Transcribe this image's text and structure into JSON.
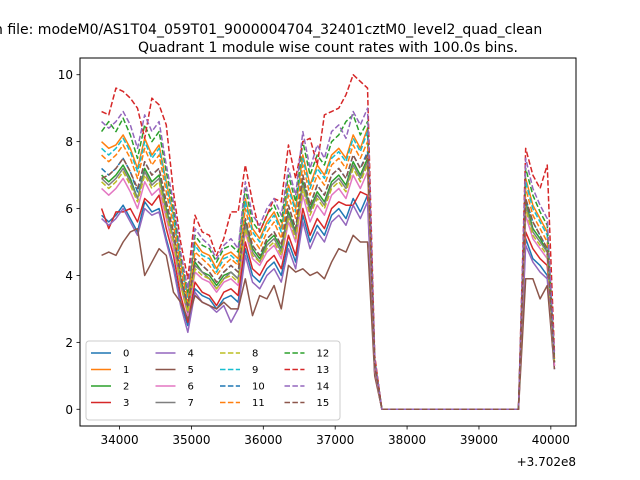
{
  "suptitle": "n file: modeM0/AS1T04_059T01_9000004704_32401cztM0_level2_quad_clean",
  "chart_data": {
    "type": "line",
    "title": "Quadrant 1 module wise count rates with 100.0s bins.",
    "xlabel": "",
    "ylabel": "",
    "x_offset_label": "+3.702e8",
    "xlim": [
      33450,
      40350
    ],
    "ylim": [
      -0.5,
      10.5
    ],
    "xticks": [
      34000,
      35000,
      36000,
      37000,
      38000,
      39000,
      40000
    ],
    "xtick_labels": [
      "34000",
      "35000",
      "36000",
      "37000",
      "38000",
      "39000",
      "40000"
    ],
    "yticks": [
      0,
      2,
      4,
      6,
      8,
      10
    ],
    "ytick_labels": [
      "0",
      "2",
      "4",
      "6",
      "8",
      "10"
    ],
    "legend": {
      "placement": "lower-left",
      "columns": 4
    },
    "x": [
      33750,
      33850,
      33950,
      34050,
      34150,
      34250,
      34350,
      34450,
      34550,
      34650,
      34750,
      34850,
      34950,
      35050,
      35150,
      35250,
      35350,
      35450,
      35550,
      35650,
      35750,
      35850,
      35950,
      36050,
      36150,
      36250,
      36350,
      36450,
      36550,
      36650,
      36750,
      36850,
      36950,
      37050,
      37150,
      37250,
      37350,
      37450,
      37550,
      37650,
      37750,
      37850,
      37950,
      38050,
      38150,
      38250,
      38350,
      38450,
      38550,
      38650,
      38750,
      38850,
      38950,
      39050,
      39150,
      39250,
      39350,
      39450,
      39550,
      39650,
      39750,
      39850,
      39950,
      40050
    ],
    "series": [
      {
        "name": "0",
        "color": "#1f77b4",
        "dashed": false,
        "values": [
          5.8,
          5.6,
          5.8,
          6.1,
          5.7,
          5.3,
          6.2,
          5.9,
          6.0,
          5.1,
          4.3,
          3.2,
          2.5,
          3.6,
          3.4,
          3.3,
          3.0,
          3.3,
          3.4,
          3.2,
          4.8,
          4.0,
          3.8,
          4.2,
          4.4,
          4.0,
          5.0,
          4.4,
          5.8,
          5.0,
          5.5,
          5.2,
          5.8,
          6.0,
          5.7,
          6.3,
          5.9,
          6.4,
          1.1,
          0,
          0,
          0,
          0,
          0,
          0,
          0,
          0,
          0,
          0,
          0,
          0,
          0,
          0,
          0,
          0,
          0,
          0,
          0,
          0,
          5.1,
          4.5,
          4.3,
          4.0,
          1.2
        ]
      },
      {
        "name": "1",
        "color": "#ff7f0e",
        "dashed": false,
        "values": [
          8.0,
          7.8,
          7.9,
          8.2,
          7.8,
          7.2,
          8.1,
          7.6,
          7.9,
          6.8,
          5.8,
          4.4,
          3.4,
          5.0,
          4.7,
          4.6,
          4.2,
          4.6,
          4.7,
          4.5,
          6.3,
          5.4,
          5.1,
          5.6,
          5.9,
          5.4,
          6.7,
          6.0,
          7.6,
          6.7,
          7.3,
          7.0,
          7.6,
          7.8,
          7.5,
          8.2,
          7.8,
          8.4,
          1.4,
          0,
          0,
          0,
          0,
          0,
          0,
          0,
          0,
          0,
          0,
          0,
          0,
          0,
          0,
          0,
          0,
          0,
          0,
          0,
          0,
          6.9,
          6.1,
          5.7,
          5.3,
          1.5
        ]
      },
      {
        "name": "2",
        "color": "#2ca02c",
        "dashed": false,
        "values": [
          7.0,
          6.8,
          7.0,
          7.3,
          6.9,
          6.3,
          7.2,
          6.8,
          7.0,
          6.0,
          5.1,
          3.9,
          3.0,
          4.4,
          4.1,
          4.0,
          3.7,
          4.0,
          4.1,
          3.9,
          5.6,
          4.8,
          4.5,
          5.0,
          5.2,
          4.8,
          5.9,
          5.3,
          6.8,
          6.0,
          6.5,
          6.2,
          6.8,
          7.0,
          6.7,
          7.4,
          7.0,
          7.5,
          1.3,
          0,
          0,
          0,
          0,
          0,
          0,
          0,
          0,
          0,
          0,
          0,
          0,
          0,
          0,
          0,
          0,
          0,
          0,
          0,
          0,
          6.2,
          5.4,
          5.1,
          4.7,
          1.4
        ]
      },
      {
        "name": "3",
        "color": "#d62728",
        "dashed": false,
        "values": [
          6.0,
          5.4,
          5.9,
          5.9,
          6.0,
          5.6,
          6.3,
          6.1,
          6.4,
          5.4,
          4.6,
          3.4,
          2.6,
          3.8,
          3.5,
          3.4,
          3.1,
          3.5,
          3.6,
          3.4,
          5.0,
          4.2,
          4.0,
          4.4,
          4.6,
          4.2,
          5.2,
          4.6,
          6.0,
          5.2,
          5.7,
          5.4,
          6.0,
          6.2,
          6.1,
          6.1,
          6.5,
          6.4,
          1.1,
          0,
          0,
          0,
          0,
          0,
          0,
          0,
          0,
          0,
          0,
          0,
          0,
          0,
          0,
          0,
          0,
          0,
          0,
          0,
          0,
          5.3,
          4.8,
          4.5,
          4.3,
          1.3
        ]
      },
      {
        "name": "4",
        "color": "#9467bd",
        "dashed": false,
        "values": [
          5.7,
          5.5,
          5.7,
          6.0,
          5.6,
          5.2,
          6.0,
          5.8,
          5.9,
          5.0,
          4.2,
          3.1,
          2.3,
          3.5,
          3.2,
          3.1,
          2.9,
          3.1,
          2.6,
          3.0,
          4.6,
          3.8,
          3.6,
          4.0,
          4.2,
          3.8,
          4.8,
          4.2,
          5.6,
          4.8,
          5.3,
          5.0,
          5.6,
          5.8,
          5.5,
          6.1,
          5.7,
          6.2,
          1.1,
          0,
          0,
          0,
          0,
          0,
          0,
          0,
          0,
          0,
          0,
          0,
          0,
          0,
          0,
          0,
          0,
          0,
          0,
          0,
          0,
          4.9,
          4.4,
          4.1,
          3.9,
          1.2
        ]
      },
      {
        "name": "5",
        "color": "#8c564b",
        "dashed": false,
        "values": [
          4.6,
          4.7,
          4.6,
          5.0,
          5.3,
          5.4,
          4.0,
          4.4,
          4.8,
          4.6,
          3.5,
          3.2,
          2.7,
          3.4,
          3.2,
          3.1,
          3.0,
          3.2,
          3.0,
          3.0,
          3.9,
          2.8,
          3.4,
          3.3,
          3.7,
          3.0,
          4.3,
          4.1,
          4.2,
          4.0,
          4.1,
          3.9,
          4.4,
          4.8,
          4.7,
          5.2,
          5.0,
          5.0,
          1.0,
          0,
          0,
          0,
          0,
          0,
          0,
          0,
          0,
          0,
          0,
          0,
          0,
          0,
          0,
          0,
          0,
          0,
          0,
          0,
          0,
          3.9,
          3.9,
          3.3,
          3.7,
          1.2
        ]
      },
      {
        "name": "6",
        "color": "#e377c2",
        "dashed": false,
        "values": [
          6.6,
          6.4,
          6.6,
          6.9,
          6.5,
          6.0,
          6.8,
          6.4,
          6.6,
          5.7,
          4.8,
          3.7,
          2.8,
          4.1,
          3.9,
          3.8,
          3.5,
          3.8,
          3.9,
          3.7,
          5.3,
          4.5,
          4.3,
          4.7,
          4.9,
          4.5,
          5.6,
          5.0,
          6.4,
          5.6,
          6.1,
          5.8,
          6.4,
          6.6,
          6.3,
          7.0,
          6.6,
          7.1,
          1.2,
          0,
          0,
          0,
          0,
          0,
          0,
          0,
          0,
          0,
          0,
          0,
          0,
          0,
          0,
          0,
          0,
          0,
          0,
          0,
          0,
          5.8,
          5.1,
          4.8,
          4.5,
          1.3
        ]
      },
      {
        "name": "7",
        "color": "#7f7f7f",
        "dashed": false,
        "values": [
          6.9,
          6.7,
          6.9,
          7.2,
          6.8,
          6.3,
          7.1,
          6.7,
          6.9,
          5.9,
          5.1,
          3.8,
          2.9,
          4.3,
          4.1,
          3.9,
          3.6,
          3.9,
          4.1,
          3.9,
          5.5,
          4.7,
          4.4,
          4.9,
          5.1,
          4.7,
          5.8,
          5.2,
          6.7,
          5.9,
          6.4,
          6.1,
          6.7,
          6.9,
          6.6,
          7.3,
          6.9,
          7.4,
          1.3,
          0,
          0,
          0,
          0,
          0,
          0,
          0,
          0,
          0,
          0,
          0,
          0,
          0,
          0,
          0,
          0,
          0,
          0,
          0,
          0,
          6.1,
          5.3,
          5.0,
          4.7,
          1.4
        ]
      },
      {
        "name": "8",
        "color": "#bcbd22",
        "dashed": true,
        "values": [
          6.8,
          6.6,
          6.8,
          7.1,
          6.7,
          6.2,
          7.0,
          6.6,
          6.8,
          5.8,
          5.0,
          3.7,
          2.9,
          4.2,
          4.0,
          3.9,
          3.6,
          3.9,
          4.0,
          3.8,
          5.4,
          4.6,
          4.4,
          4.8,
          5.0,
          4.6,
          5.7,
          5.1,
          6.6,
          5.8,
          6.3,
          6.0,
          6.6,
          6.8,
          6.5,
          7.2,
          6.8,
          7.3,
          1.3,
          0,
          0,
          0,
          0,
          0,
          0,
          0,
          0,
          0,
          0,
          0,
          0,
          0,
          0,
          0,
          0,
          0,
          0,
          0,
          0,
          6.0,
          5.2,
          4.9,
          4.6,
          1.4
        ]
      },
      {
        "name": "9",
        "color": "#17becf",
        "dashed": true,
        "values": [
          7.8,
          7.6,
          7.8,
          8.1,
          7.7,
          7.1,
          8.0,
          7.5,
          7.8,
          6.7,
          5.7,
          4.3,
          3.3,
          4.9,
          4.6,
          4.5,
          4.1,
          4.5,
          4.6,
          4.4,
          6.2,
          5.3,
          5.0,
          5.5,
          5.8,
          5.3,
          6.6,
          5.9,
          7.5,
          6.6,
          7.2,
          6.9,
          7.5,
          7.7,
          7.4,
          8.1,
          7.7,
          8.3,
          1.4,
          0,
          0,
          0,
          0,
          0,
          0,
          0,
          0,
          0,
          0,
          0,
          0,
          0,
          0,
          0,
          0,
          0,
          0,
          0,
          0,
          6.8,
          6.0,
          5.6,
          5.2,
          1.5
        ]
      },
      {
        "name": "10",
        "color": "#1f77b4",
        "dashed": true,
        "values": [
          7.2,
          7.0,
          7.2,
          7.5,
          7.1,
          6.5,
          7.4,
          7.0,
          7.2,
          6.2,
          5.3,
          4.0,
          3.1,
          4.5,
          4.3,
          4.1,
          3.8,
          4.1,
          4.3,
          4.1,
          5.7,
          4.9,
          4.6,
          5.1,
          5.3,
          4.9,
          6.1,
          5.4,
          7.0,
          6.1,
          6.7,
          6.4,
          7.0,
          7.2,
          6.9,
          7.6,
          7.2,
          7.7,
          1.3,
          0,
          0,
          0,
          0,
          0,
          0,
          0,
          0,
          0,
          0,
          0,
          0,
          0,
          0,
          0,
          0,
          0,
          0,
          0,
          0,
          6.3,
          5.6,
          5.2,
          4.8,
          1.4
        ]
      },
      {
        "name": "11",
        "color": "#ff7f0e",
        "dashed": true,
        "values": [
          7.6,
          7.4,
          7.6,
          7.9,
          7.5,
          6.9,
          7.8,
          7.3,
          7.6,
          6.5,
          5.5,
          4.2,
          3.2,
          4.7,
          4.5,
          4.3,
          4.0,
          4.3,
          4.5,
          4.3,
          6.0,
          5.1,
          4.8,
          5.3,
          5.6,
          5.1,
          6.4,
          5.7,
          7.3,
          6.4,
          7.0,
          6.7,
          7.3,
          7.5,
          7.2,
          7.9,
          7.5,
          8.0,
          1.4,
          0,
          0,
          0,
          0,
          0,
          0,
          0,
          0,
          0,
          0,
          0,
          0,
          0,
          0,
          0,
          0,
          0,
          0,
          0,
          0,
          6.6,
          5.8,
          5.4,
          5.0,
          1.5
        ]
      },
      {
        "name": "12",
        "color": "#2ca02c",
        "dashed": true,
        "values": [
          8.3,
          8.6,
          8.3,
          8.7,
          8.2,
          7.5,
          8.5,
          8.0,
          8.3,
          7.1,
          6.0,
          4.6,
          3.5,
          5.2,
          4.9,
          4.8,
          4.4,
          4.8,
          4.9,
          4.7,
          6.6,
          5.6,
          5.3,
          5.8,
          6.1,
          5.6,
          7.0,
          6.2,
          8.0,
          7.0,
          7.6,
          7.3,
          8.0,
          8.2,
          8.6,
          8.8,
          8.2,
          8.6,
          1.5,
          0,
          0,
          0,
          0,
          0,
          0,
          0,
          0,
          0,
          0,
          0,
          0,
          0,
          0,
          0,
          0,
          0,
          0,
          0,
          0,
          7.2,
          6.4,
          5.9,
          5.5,
          1.6
        ]
      },
      {
        "name": "13",
        "color": "#d62728",
        "dashed": true,
        "values": [
          8.9,
          8.8,
          9.6,
          9.5,
          9.3,
          9.0,
          8.1,
          9.3,
          9.1,
          8.5,
          6.5,
          5.0,
          3.9,
          5.8,
          5.3,
          5.2,
          4.6,
          5.1,
          5.9,
          5.9,
          7.3,
          6.2,
          5.3,
          5.8,
          6.3,
          6.2,
          7.9,
          6.9,
          8.0,
          8.1,
          7.3,
          8.8,
          8.9,
          9.0,
          9.4,
          10.0,
          9.8,
          9.6,
          1.6,
          0,
          0,
          0,
          0,
          0,
          0,
          0,
          0,
          0,
          0,
          0,
          0,
          0,
          0,
          0,
          0,
          0,
          0,
          0,
          0,
          7.8,
          7.0,
          6.6,
          7.3,
          1.7
        ]
      },
      {
        "name": "14",
        "color": "#9467bd",
        "dashed": true,
        "values": [
          8.6,
          8.4,
          8.6,
          8.9,
          8.5,
          7.8,
          8.8,
          8.3,
          8.6,
          7.3,
          6.2,
          4.7,
          3.6,
          5.4,
          5.1,
          4.9,
          4.5,
          4.9,
          5.1,
          4.8,
          6.8,
          5.8,
          5.5,
          6.0,
          6.3,
          5.8,
          7.2,
          6.4,
          8.3,
          7.2,
          7.9,
          7.5,
          8.3,
          8.5,
          8.1,
          8.9,
          8.5,
          9.0,
          1.5,
          0,
          0,
          0,
          0,
          0,
          0,
          0,
          0,
          0,
          0,
          0,
          0,
          0,
          0,
          0,
          0,
          0,
          0,
          0,
          0,
          7.5,
          6.6,
          6.1,
          5.7,
          1.6
        ]
      },
      {
        "name": "15",
        "color": "#8c564b",
        "dashed": true,
        "values": [
          6.9,
          7.0,
          7.2,
          7.5,
          7.1,
          6.6,
          7.4,
          7.0,
          7.2,
          6.2,
          5.3,
          4.0,
          3.1,
          4.5,
          4.3,
          4.1,
          3.8,
          4.1,
          4.3,
          4.1,
          5.7,
          4.9,
          4.6,
          5.1,
          5.3,
          4.9,
          6.1,
          5.4,
          7.0,
          6.1,
          6.7,
          6.4,
          7.0,
          7.2,
          6.9,
          7.6,
          7.2,
          7.6,
          1.3,
          0,
          0,
          0,
          0,
          0,
          0,
          0,
          0,
          0,
          0,
          0,
          0,
          0,
          0,
          0,
          0,
          0,
          0,
          0,
          0,
          6.3,
          5.6,
          5.2,
          4.8,
          1.4
        ]
      }
    ]
  }
}
